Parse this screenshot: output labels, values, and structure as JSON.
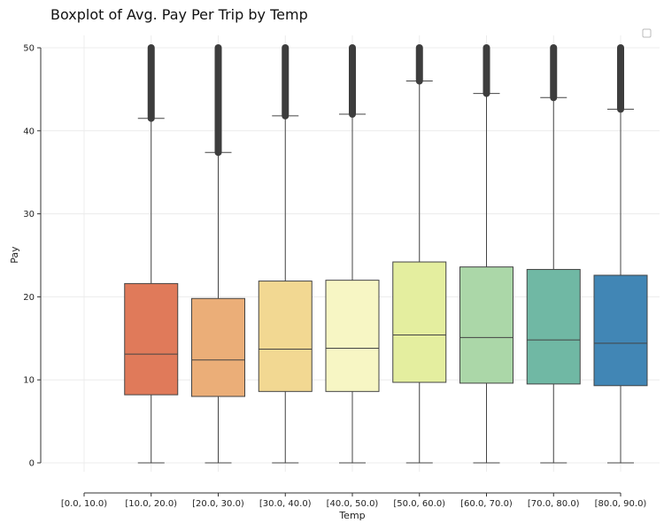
{
  "chart_data": {
    "type": "boxplot",
    "title": "Boxplot of Avg. Pay Per Trip by Temp",
    "xlabel": "Temp",
    "ylabel": "Pay",
    "ylim": [
      0,
      50
    ],
    "yticks": [
      0,
      10,
      20,
      30,
      40,
      50
    ],
    "grid": true,
    "legend": "top-right (empty)",
    "categories": [
      "[0.0, 10.0)",
      "[10.0, 20.0)",
      "[20.0, 30.0)",
      "[30.0, 40.0)",
      "[40.0, 50.0)",
      "[50.0, 60.0)",
      "[60.0, 70.0)",
      "[70.0, 80.0)",
      "[80.0, 90.0)"
    ],
    "boxes": [
      null,
      {
        "whisker_low": 0,
        "q1": 8.2,
        "median": 13.1,
        "q3": 21.6,
        "whisker_high": 41.5,
        "outliers_from": 41.5,
        "outliers_to": 50,
        "color": "#e07a5a"
      },
      {
        "whisker_low": 0,
        "q1": 8.0,
        "median": 12.4,
        "q3": 19.8,
        "whisker_high": 37.4,
        "outliers_from": 37.4,
        "outliers_to": 50,
        "color": "#ebae78"
      },
      {
        "whisker_low": 0,
        "q1": 8.6,
        "median": 13.7,
        "q3": 21.9,
        "whisker_high": 41.8,
        "outliers_from": 41.8,
        "outliers_to": 50,
        "color": "#f2d892"
      },
      {
        "whisker_low": 0,
        "q1": 8.6,
        "median": 13.8,
        "q3": 22.0,
        "whisker_high": 42.0,
        "outliers_from": 42.0,
        "outliers_to": 50,
        "color": "#f7f6c4"
      },
      {
        "whisker_low": 0,
        "q1": 9.7,
        "median": 15.4,
        "q3": 24.2,
        "whisker_high": 46.0,
        "outliers_from": 46.0,
        "outliers_to": 50,
        "color": "#e4ee9f"
      },
      {
        "whisker_low": 0,
        "q1": 9.6,
        "median": 15.1,
        "q3": 23.6,
        "whisker_high": 44.5,
        "outliers_from": 44.5,
        "outliers_to": 50,
        "color": "#abd7a8"
      },
      {
        "whisker_low": 0,
        "q1": 9.5,
        "median": 14.8,
        "q3": 23.3,
        "whisker_high": 44.0,
        "outliers_from": 44.0,
        "outliers_to": 50,
        "color": "#70b8a4"
      },
      {
        "whisker_low": 0,
        "q1": 9.3,
        "median": 14.4,
        "q3": 22.6,
        "whisker_high": 42.6,
        "outliers_from": 42.6,
        "outliers_to": 50,
        "color": "#4186b5"
      }
    ]
  }
}
